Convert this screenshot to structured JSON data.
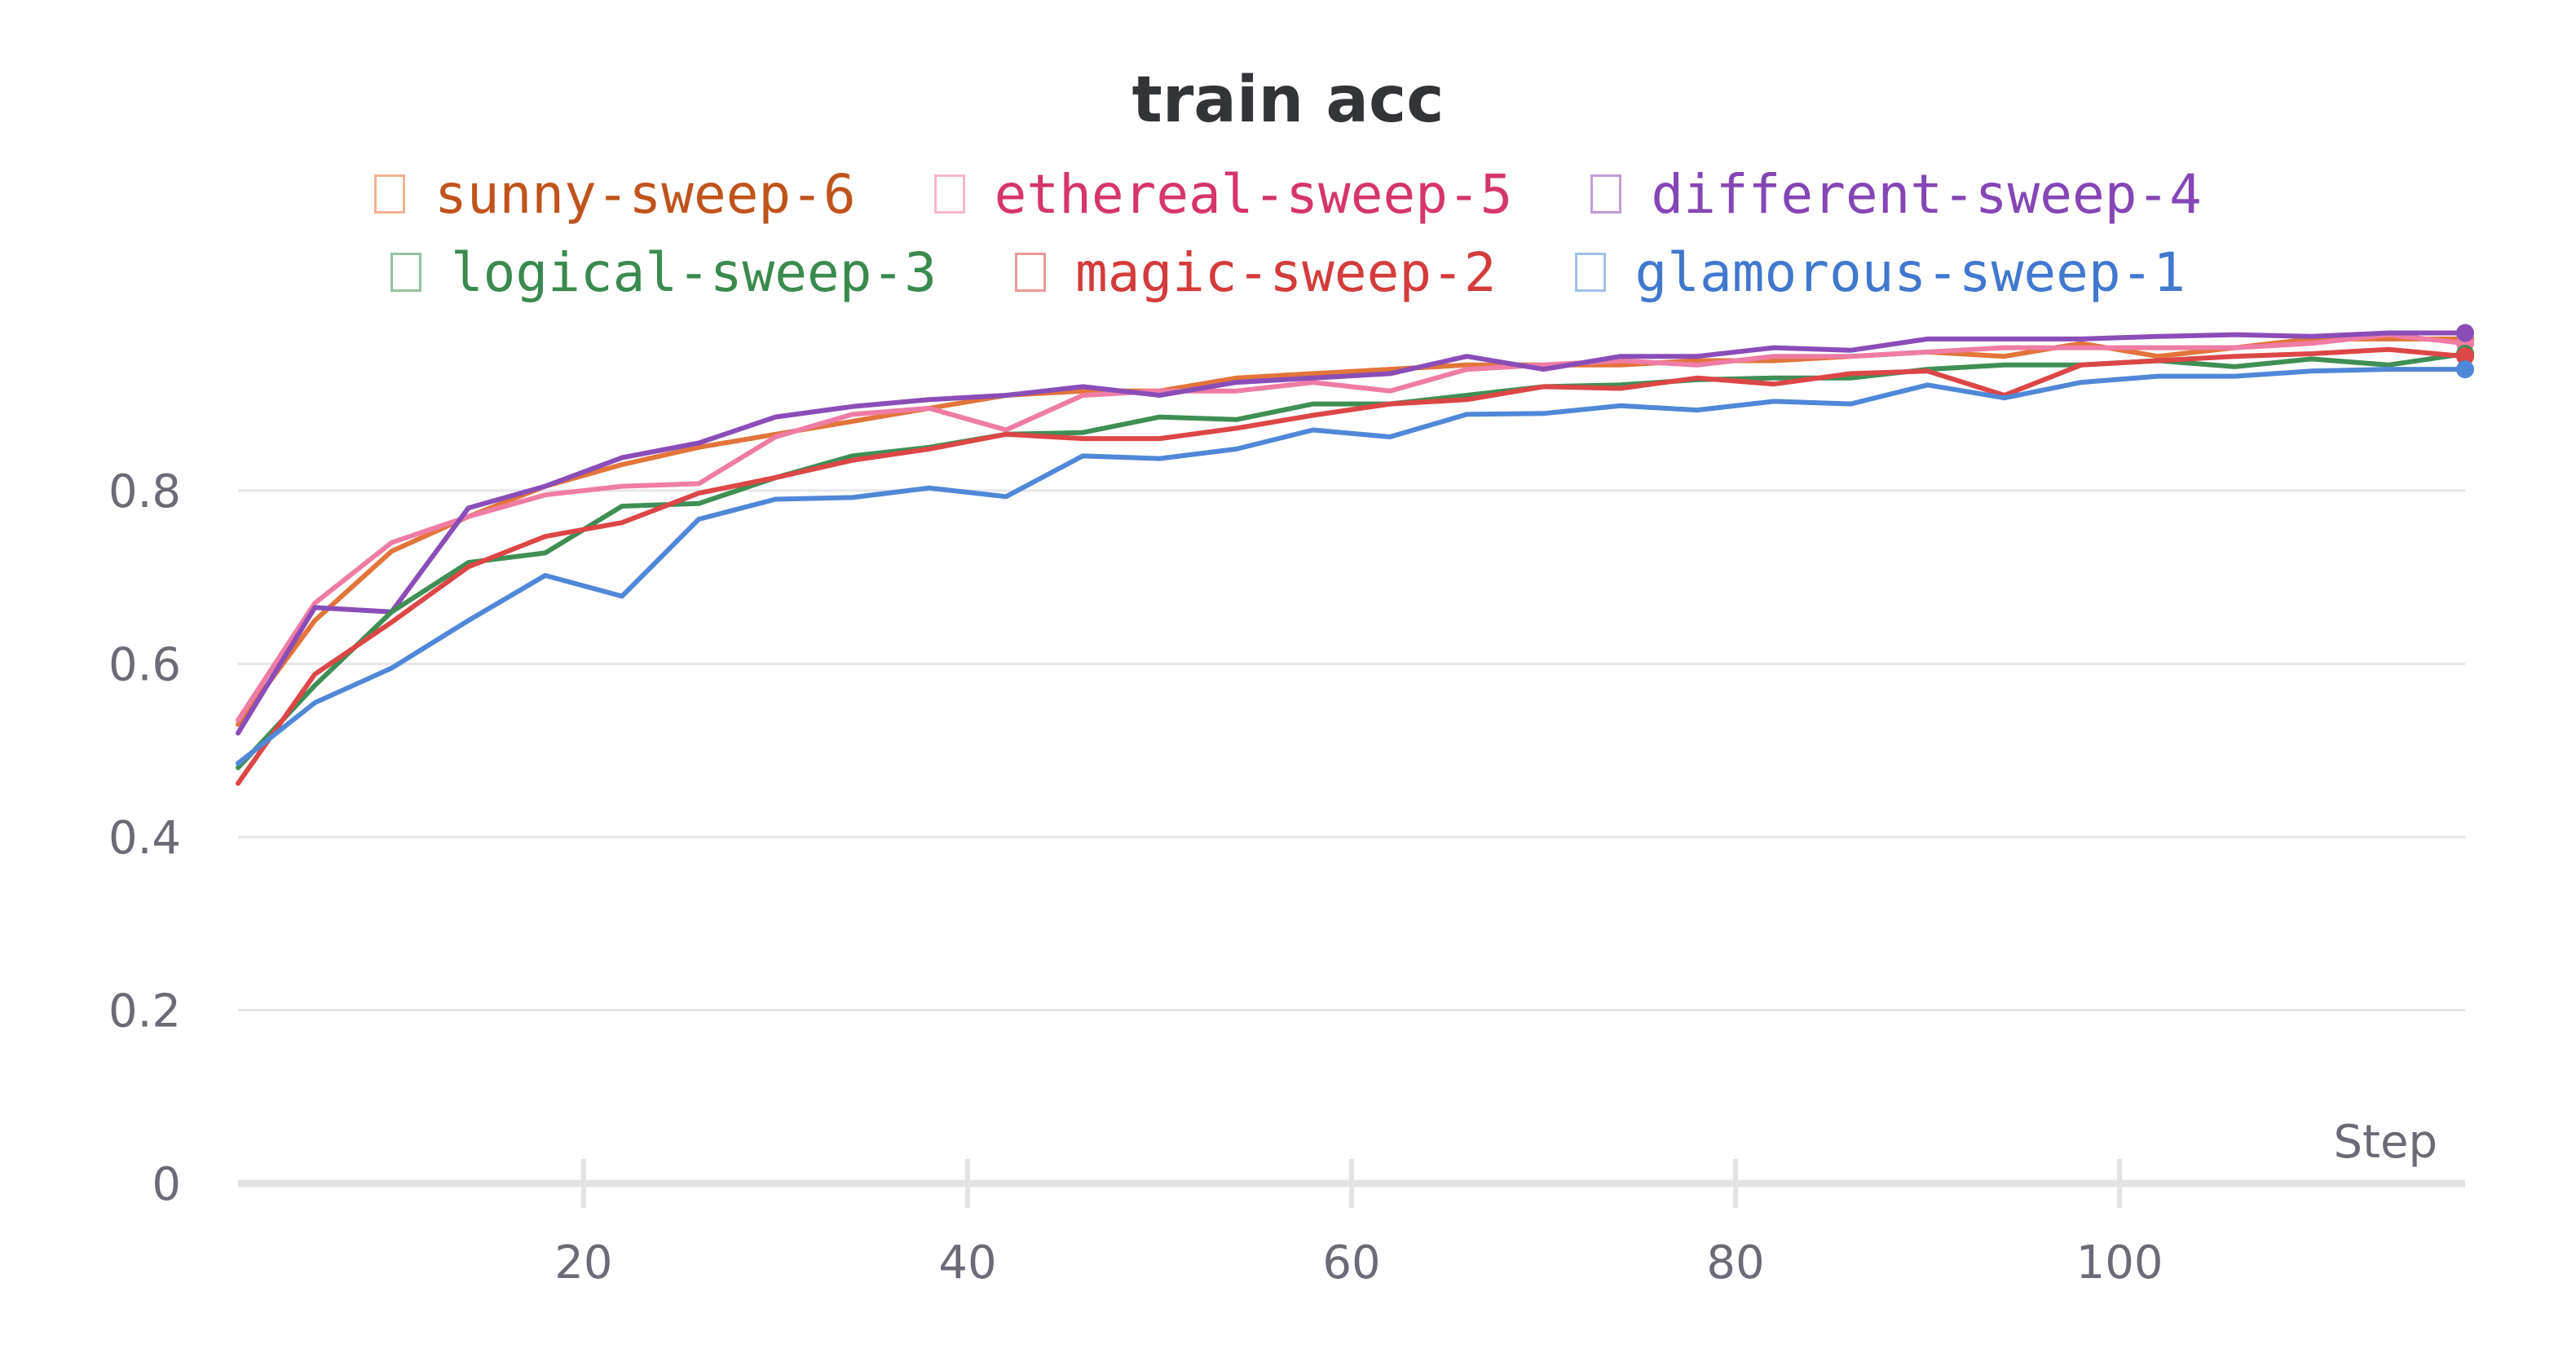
{
  "chart_data": {
    "type": "line",
    "title": "train acc",
    "xlabel": "Step",
    "ylabel": "",
    "xlim": [
      2,
      118
    ],
    "ylim": [
      0,
      0.99
    ],
    "grid": true,
    "legend_position": "top-center",
    "x_ticks": [
      20,
      40,
      60,
      80,
      100
    ],
    "y_ticks": [
      0,
      0.2,
      0.4,
      0.6,
      0.8
    ],
    "x": [
      2,
      6,
      10,
      14,
      18,
      22,
      26,
      30,
      34,
      38,
      42,
      46,
      50,
      54,
      58,
      62,
      66,
      70,
      74,
      78,
      82,
      86,
      90,
      94,
      98,
      102,
      106,
      110,
      114,
      118
    ],
    "series": [
      {
        "name": "sunny-sweep-6",
        "color": "#e3743a",
        "text_color": "#c0531c",
        "values": [
          0.53,
          0.65,
          0.73,
          0.77,
          0.805,
          0.83,
          0.85,
          0.865,
          0.88,
          0.895,
          0.91,
          0.915,
          0.915,
          0.93,
          0.935,
          0.94,
          0.945,
          0.945,
          0.945,
          0.95,
          0.95,
          0.955,
          0.96,
          0.955,
          0.97,
          0.955,
          0.965,
          0.975,
          0.975,
          0.975
        ]
      },
      {
        "name": "ethereal-sweep-5",
        "color": "#ef7ca5",
        "text_color": "#d6356b",
        "values": [
          0.535,
          0.67,
          0.74,
          0.77,
          0.795,
          0.805,
          0.808,
          0.862,
          0.888,
          0.895,
          0.87,
          0.91,
          0.915,
          0.915,
          0.925,
          0.915,
          0.94,
          0.945,
          0.95,
          0.945,
          0.955,
          0.955,
          0.96,
          0.965,
          0.965,
          0.965,
          0.965,
          0.97,
          0.98,
          0.97
        ]
      },
      {
        "name": "different-sweep-4",
        "color": "#8a4db8",
        "text_color": "#8546b5",
        "values": [
          0.52,
          0.665,
          0.66,
          0.78,
          0.805,
          0.838,
          0.855,
          0.885,
          0.897,
          0.905,
          0.91,
          0.92,
          0.91,
          0.925,
          0.93,
          0.935,
          0.955,
          0.94,
          0.955,
          0.955,
          0.965,
          0.962,
          0.975,
          0.975,
          0.975,
          0.978,
          0.98,
          0.978,
          0.982,
          0.982
        ]
      },
      {
        "name": "logical-sweep-3",
        "color": "#3f8f55",
        "text_color": "#3a8a4f",
        "values": [
          0.48,
          0.575,
          0.66,
          0.717,
          0.728,
          0.782,
          0.785,
          0.815,
          0.84,
          0.85,
          0.865,
          0.867,
          0.885,
          0.882,
          0.9,
          0.9,
          0.91,
          0.92,
          0.922,
          0.928,
          0.93,
          0.93,
          0.94,
          0.945,
          0.945,
          0.95,
          0.943,
          0.952,
          0.945,
          0.958
        ]
      },
      {
        "name": "magic-sweep-2",
        "color": "#dd4646",
        "text_color": "#d43b3b",
        "values": [
          0.462,
          0.588,
          0.648,
          0.712,
          0.747,
          0.763,
          0.797,
          0.815,
          0.835,
          0.848,
          0.865,
          0.86,
          0.86,
          0.872,
          0.887,
          0.9,
          0.905,
          0.92,
          0.918,
          0.93,
          0.923,
          0.935,
          0.938,
          0.91,
          0.945,
          0.95,
          0.955,
          0.958,
          0.963,
          0.955
        ]
      },
      {
        "name": "glamorous-sweep-1",
        "color": "#5088d8",
        "text_color": "#4178cf",
        "values": [
          0.485,
          0.555,
          0.595,
          0.65,
          0.702,
          0.678,
          0.767,
          0.79,
          0.792,
          0.803,
          0.793,
          0.84,
          0.837,
          0.848,
          0.87,
          0.862,
          0.888,
          0.889,
          0.898,
          0.893,
          0.903,
          0.9,
          0.922,
          0.907,
          0.925,
          0.932,
          0.932,
          0.938,
          0.94,
          0.94
        ]
      }
    ]
  }
}
